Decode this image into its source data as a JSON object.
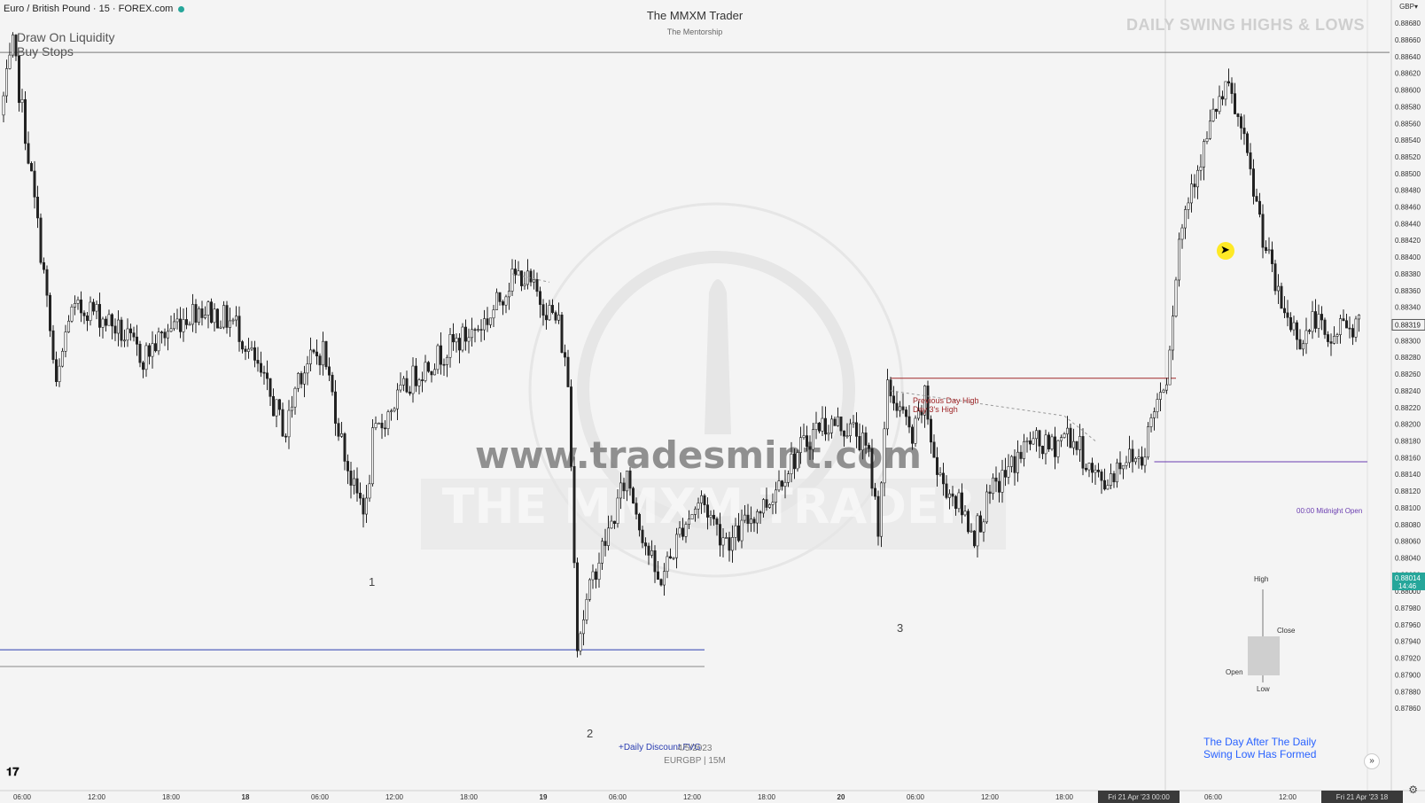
{
  "header": {
    "symbol": "Euro / British Pound · 15 · FOREX.com",
    "brand_title": "The MMXM Trader",
    "brand_subtitle": "The Mentorship",
    "section_title": "DAILY SWING HIGHS & LOWS",
    "currency": "GBP▾"
  },
  "annotations": {
    "liquidity_line1": "Draw On Liquidity",
    "liquidity_line2": "Buy Stops",
    "pdh_line1": "Previous Day High",
    "pdh_line2": "Day 3's High",
    "midnight_open": "00:00 Midnight Open",
    "fvg": "+Daily Discount FVG",
    "mark1": "1",
    "mark2": "2",
    "mark3": "3",
    "day_after_line1": "The Day After The Daily",
    "day_after_line2": "Swing Low Has Formed",
    "chart_date": "4/5/2023",
    "chart_symbol": "EURGBP | 15M"
  },
  "watermark": {
    "url": "www.tradesmint.com",
    "brand": "THE MMXM TRADER"
  },
  "legend": {
    "high": "High",
    "close": "Close",
    "open": "Open",
    "low": "Low"
  },
  "colors": {
    "candle": "#222222",
    "pdh_line": "#a0282a",
    "midnight_line": "#6a3db0",
    "fvg_line": "#2a3db0",
    "current_price_bg": "#26a69a",
    "accent_blue": "#2962ff"
  },
  "icons": {
    "tv_logo": "tradingview-logo-icon",
    "scroll": "scroll-to-realtime-icon",
    "settings": "gear-icon",
    "cursor": "mouse-cursor-icon"
  },
  "chart_data": {
    "type": "candlestick",
    "title": "Euro / British Pound · 15 · FOREX.com",
    "y_axis": {
      "min": 0.8777,
      "max": 0.88695,
      "ticks": [
        "0.88680",
        "0.88660",
        "0.88640",
        "0.88620",
        "0.88600",
        "0.88580",
        "0.88560",
        "0.88540",
        "0.88520",
        "0.88500",
        "0.88480",
        "0.88460",
        "0.88440",
        "0.88420",
        "0.88400",
        "0.88380",
        "0.88360",
        "0.88340",
        "0.88320",
        "0.88300",
        "0.88280",
        "0.88260",
        "0.88240",
        "0.88220",
        "0.88200",
        "0.88180",
        "0.88160",
        "0.88140",
        "0.88120",
        "0.88100",
        "0.88080",
        "0.88060",
        "0.88040",
        "0.88020",
        "0.88000",
        "0.87980",
        "0.87960",
        "0.87940",
        "0.87920",
        "0.87900",
        "0.87880",
        "0.87860"
      ],
      "tick_values": [
        0.8868,
        0.8866,
        0.8864,
        0.8862,
        0.886,
        0.8858,
        0.8856,
        0.8854,
        0.8852,
        0.885,
        0.8848,
        0.8846,
        0.8844,
        0.8842,
        0.884,
        0.8838,
        0.8836,
        0.8834,
        0.8832,
        0.883,
        0.8828,
        0.8826,
        0.8824,
        0.8822,
        0.882,
        0.8818,
        0.8816,
        0.8814,
        0.8812,
        0.881,
        0.8808,
        0.8806,
        0.8804,
        0.8802,
        0.88,
        0.8798,
        0.8796,
        0.8794,
        0.8792,
        0.879,
        0.8788,
        0.8786
      ]
    },
    "x_axis": {
      "labels": [
        "06:00",
        "12:00",
        "18:00",
        "18",
        "06:00",
        "12:00",
        "18:00",
        "19",
        "06:00",
        "12:00",
        "18:00",
        "20",
        "06:00",
        "12:00",
        "18:00",
        "Fri 21 Apr '23  00:00",
        "06:00",
        "12:00",
        "Fri 21 Apr '23  18"
      ],
      "bars": [
        6,
        30,
        54,
        78,
        102,
        126,
        150,
        174,
        198,
        222,
        246,
        270,
        294,
        318,
        342,
        366,
        390,
        414,
        438
      ]
    },
    "current_price": "0.88319",
    "tracked_price": "0.88014",
    "countdown": "14:46",
    "levels": [
      {
        "name": "Buy Stops",
        "price": 0.88645
      },
      {
        "name": "Previous Day High",
        "price": 0.88255
      },
      {
        "name": "00:00 Midnight Open",
        "price": 0.88155
      },
      {
        "name": "Daily Discount FVG",
        "price": 0.8793
      }
    ],
    "key_points": [
      {
        "label": "Buy Stops high",
        "bar": 4,
        "price": 0.88645
      },
      {
        "label": "1",
        "bar": 118,
        "price": 0.881
      },
      {
        "label": "2",
        "bar": 186,
        "price": 0.8793
      },
      {
        "label": "3",
        "bar": 283,
        "price": 0.8806
      },
      {
        "label": "Day 3 high",
        "bar": 286,
        "price": 0.8825
      },
      {
        "label": "Daily high",
        "bar": 396,
        "price": 0.8861
      },
      {
        "label": "Last",
        "bar": 437,
        "price": 0.88319
      }
    ],
    "path_anchors": [
      [
        0,
        0.8857
      ],
      [
        4,
        0.8865
      ],
      [
        8,
        0.8855
      ],
      [
        14,
        0.8838
      ],
      [
        18,
        0.8824
      ],
      [
        22,
        0.8833
      ],
      [
        28,
        0.8834
      ],
      [
        36,
        0.8832
      ],
      [
        46,
        0.8828
      ],
      [
        56,
        0.8832
      ],
      [
        64,
        0.8834
      ],
      [
        76,
        0.8832
      ],
      [
        86,
        0.8824
      ],
      [
        92,
        0.8819
      ],
      [
        96,
        0.8826
      ],
      [
        104,
        0.8829
      ],
      [
        110,
        0.8818
      ],
      [
        114,
        0.8812
      ],
      [
        118,
        0.881
      ],
      [
        120,
        0.8818
      ],
      [
        126,
        0.8822
      ],
      [
        134,
        0.8826
      ],
      [
        144,
        0.8829
      ],
      [
        152,
        0.8831
      ],
      [
        158,
        0.8833
      ],
      [
        164,
        0.8837
      ],
      [
        168,
        0.8838
      ],
      [
        174,
        0.8835
      ],
      [
        180,
        0.8832
      ],
      [
        183,
        0.8825
      ],
      [
        185,
        0.8805
      ],
      [
        186,
        0.8794
      ],
      [
        188,
        0.8797
      ],
      [
        192,
        0.8803
      ],
      [
        197,
        0.8808
      ],
      [
        202,
        0.8814
      ],
      [
        207,
        0.8807
      ],
      [
        212,
        0.8801
      ],
      [
        216,
        0.8804
      ],
      [
        220,
        0.8808
      ],
      [
        226,
        0.8811
      ],
      [
        232,
        0.8807
      ],
      [
        236,
        0.8806
      ],
      [
        242,
        0.8809
      ],
      [
        248,
        0.8811
      ],
      [
        252,
        0.8814
      ],
      [
        258,
        0.8817
      ],
      [
        264,
        0.882
      ],
      [
        270,
        0.882
      ],
      [
        276,
        0.8819
      ],
      [
        280,
        0.8816
      ],
      [
        283,
        0.8808
      ],
      [
        286,
        0.8824
      ],
      [
        290,
        0.8822
      ],
      [
        294,
        0.8818
      ],
      [
        298,
        0.8823
      ],
      [
        302,
        0.8814
      ],
      [
        308,
        0.8811
      ],
      [
        314,
        0.8807
      ],
      [
        320,
        0.8812
      ],
      [
        326,
        0.8815
      ],
      [
        332,
        0.8818
      ],
      [
        338,
        0.8817
      ],
      [
        344,
        0.8819
      ],
      [
        348,
        0.8817
      ],
      [
        352,
        0.8814
      ],
      [
        356,
        0.8813
      ],
      [
        362,
        0.8816
      ],
      [
        368,
        0.8816
      ],
      [
        372,
        0.8822
      ],
      [
        376,
        0.8826
      ],
      [
        380,
        0.8842
      ],
      [
        384,
        0.8849
      ],
      [
        388,
        0.8853
      ],
      [
        392,
        0.8858
      ],
      [
        396,
        0.886
      ],
      [
        400,
        0.8855
      ],
      [
        404,
        0.8848
      ],
      [
        408,
        0.8841
      ],
      [
        412,
        0.8835
      ],
      [
        416,
        0.8832
      ],
      [
        420,
        0.883
      ],
      [
        424,
        0.8833
      ],
      [
        428,
        0.8829
      ],
      [
        432,
        0.8832
      ],
      [
        437,
        0.8832
      ]
    ]
  }
}
